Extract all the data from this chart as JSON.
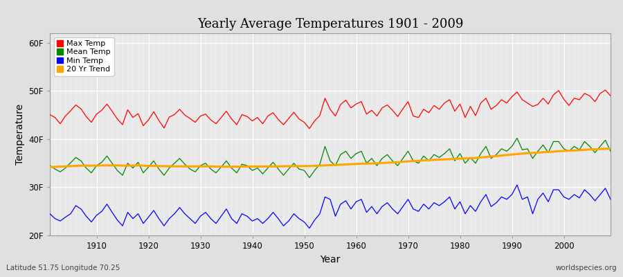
{
  "title": "Yearly Average Temperatures 1901 - 2009",
  "xlabel": "Year",
  "ylabel": "Temperature",
  "xlim": [
    1901,
    2009
  ],
  "ylim_ticks": [
    20,
    30,
    40,
    50,
    60
  ],
  "ytick_labels": [
    "20F",
    "30F",
    "40F",
    "50F",
    "60F"
  ],
  "xticks": [
    1910,
    1920,
    1930,
    1940,
    1950,
    1960,
    1970,
    1980,
    1990,
    2000
  ],
  "bg_color": "#e0e0e0",
  "plot_bg": "#e8e8e8",
  "grid_color": "#ffffff",
  "legend_labels": [
    "Max Temp",
    "Mean Temp",
    "Min Temp",
    "20 Yr Trend"
  ],
  "legend_colors": [
    "#ff0000",
    "#008800",
    "#0000ff",
    "#ffa500"
  ],
  "footer_left": "Latitude 51.75 Longitude 70.25",
  "footer_right": "worldspecies.org",
  "max_temp": [
    45.1,
    44.5,
    43.2,
    44.8,
    45.9,
    47.1,
    46.3,
    44.7,
    43.5,
    45.2,
    46.0,
    47.3,
    45.8,
    44.2,
    43.0,
    46.1,
    44.5,
    45.3,
    42.8,
    44.0,
    45.7,
    43.9,
    42.3,
    44.6,
    45.1,
    46.2,
    45.0,
    44.3,
    43.5,
    44.8,
    45.2,
    44.0,
    43.2,
    44.5,
    45.8,
    44.2,
    43.0,
    45.1,
    44.7,
    43.8,
    44.5,
    43.2,
    44.8,
    45.5,
    44.1,
    43.0,
    44.3,
    45.6,
    44.2,
    43.5,
    42.2,
    43.8,
    44.9,
    48.5,
    46.2,
    44.8,
    47.2,
    48.1,
    46.5,
    47.3,
    47.8,
    45.2,
    46.0,
    44.8,
    46.5,
    47.1,
    46.0,
    44.7,
    46.3,
    47.8,
    44.8,
    44.5,
    46.2,
    45.5,
    47.0,
    46.2,
    47.5,
    48.2,
    45.8,
    47.3,
    44.5,
    46.8,
    44.9,
    47.5,
    48.5,
    46.2,
    47.0,
    48.2,
    47.5,
    48.8,
    49.8,
    48.2,
    47.5,
    46.8,
    47.2,
    48.5,
    47.3,
    49.2,
    50.1,
    48.3,
    47.0,
    48.5,
    48.2,
    49.5,
    49.0,
    47.8,
    49.5,
    50.2,
    49.0
  ],
  "mean_temp": [
    34.5,
    33.8,
    33.2,
    34.0,
    35.1,
    36.2,
    35.5,
    34.0,
    33.0,
    34.5,
    35.2,
    36.5,
    35.0,
    33.5,
    32.5,
    35.0,
    34.0,
    35.2,
    33.0,
    34.2,
    35.5,
    33.8,
    32.5,
    34.0,
    35.0,
    36.0,
    34.8,
    33.8,
    33.2,
    34.5,
    35.0,
    33.8,
    33.0,
    34.2,
    35.5,
    34.0,
    33.0,
    34.8,
    34.5,
    33.5,
    34.0,
    32.8,
    34.0,
    35.2,
    33.8,
    32.5,
    33.8,
    35.0,
    33.8,
    33.5,
    32.0,
    33.5,
    34.8,
    38.5,
    35.5,
    34.5,
    36.8,
    37.5,
    36.0,
    37.0,
    37.5,
    35.0,
    36.0,
    34.5,
    36.0,
    36.8,
    35.5,
    34.5,
    36.0,
    37.5,
    35.5,
    35.0,
    36.5,
    35.5,
    36.8,
    36.2,
    37.0,
    38.0,
    35.5,
    37.0,
    35.0,
    36.2,
    35.0,
    37.0,
    38.5,
    36.0,
    36.8,
    38.0,
    37.5,
    38.5,
    40.2,
    37.8,
    38.0,
    36.0,
    37.5,
    38.8,
    37.2,
    39.5,
    39.5,
    38.0,
    37.5,
    38.5,
    37.8,
    39.5,
    38.5,
    37.2,
    38.5,
    39.8,
    37.5
  ],
  "min_temp": [
    24.5,
    23.5,
    23.0,
    23.8,
    24.5,
    26.2,
    25.5,
    24.0,
    22.8,
    24.2,
    25.0,
    26.5,
    24.8,
    23.2,
    22.0,
    24.8,
    23.5,
    24.5,
    22.5,
    23.8,
    25.2,
    23.5,
    22.0,
    23.5,
    24.5,
    25.8,
    24.5,
    23.5,
    22.5,
    24.0,
    24.8,
    23.5,
    22.5,
    24.0,
    25.5,
    23.5,
    22.5,
    24.5,
    24.0,
    23.0,
    23.5,
    22.5,
    23.5,
    24.8,
    23.5,
    22.0,
    23.0,
    24.5,
    23.5,
    22.8,
    21.5,
    23.2,
    24.5,
    28.0,
    27.5,
    24.0,
    26.5,
    27.2,
    25.5,
    27.0,
    27.5,
    24.8,
    26.0,
    24.5,
    26.0,
    26.8,
    25.5,
    24.5,
    26.0,
    27.5,
    25.5,
    25.0,
    26.5,
    25.5,
    26.8,
    26.2,
    27.0,
    28.0,
    25.5,
    27.0,
    24.5,
    26.2,
    25.0,
    27.0,
    28.5,
    26.0,
    26.8,
    28.0,
    27.5,
    28.5,
    30.5,
    27.5,
    28.0,
    24.5,
    27.5,
    28.8,
    27.0,
    29.5,
    29.5,
    28.0,
    27.5,
    28.5,
    27.8,
    29.5,
    28.5,
    27.2,
    28.5,
    29.8,
    27.5
  ],
  "trend": [
    34.2,
    34.25,
    34.3,
    34.35,
    34.4,
    34.45,
    34.5,
    34.5,
    34.5,
    34.52,
    34.54,
    34.55,
    34.55,
    34.55,
    34.5,
    34.52,
    34.52,
    34.55,
    34.5,
    34.45,
    34.45,
    34.42,
    34.4,
    34.38,
    34.35,
    34.35,
    34.35,
    34.35,
    34.35,
    34.35,
    34.35,
    34.35,
    34.3,
    34.28,
    34.28,
    34.28,
    34.28,
    34.3,
    34.32,
    34.32,
    34.32,
    34.32,
    34.32,
    34.35,
    34.35,
    34.38,
    34.38,
    34.4,
    34.4,
    34.42,
    34.42,
    34.45,
    34.5,
    34.55,
    34.6,
    34.65,
    34.7,
    34.75,
    34.8,
    34.85,
    34.9,
    34.92,
    34.95,
    35.0,
    35.05,
    35.1,
    35.15,
    35.2,
    35.3,
    35.4,
    35.45,
    35.5,
    35.6,
    35.65,
    35.7,
    35.75,
    35.8,
    35.85,
    35.9,
    35.95,
    36.0,
    36.05,
    36.1,
    36.2,
    36.3,
    36.4,
    36.5,
    36.6,
    36.7,
    36.8,
    36.9,
    37.0,
    37.1,
    37.15,
    37.2,
    37.3,
    37.35,
    37.4,
    37.5,
    37.55,
    37.6,
    37.65,
    37.7,
    37.8,
    37.85,
    37.9,
    37.95,
    38.0,
    38.05
  ]
}
